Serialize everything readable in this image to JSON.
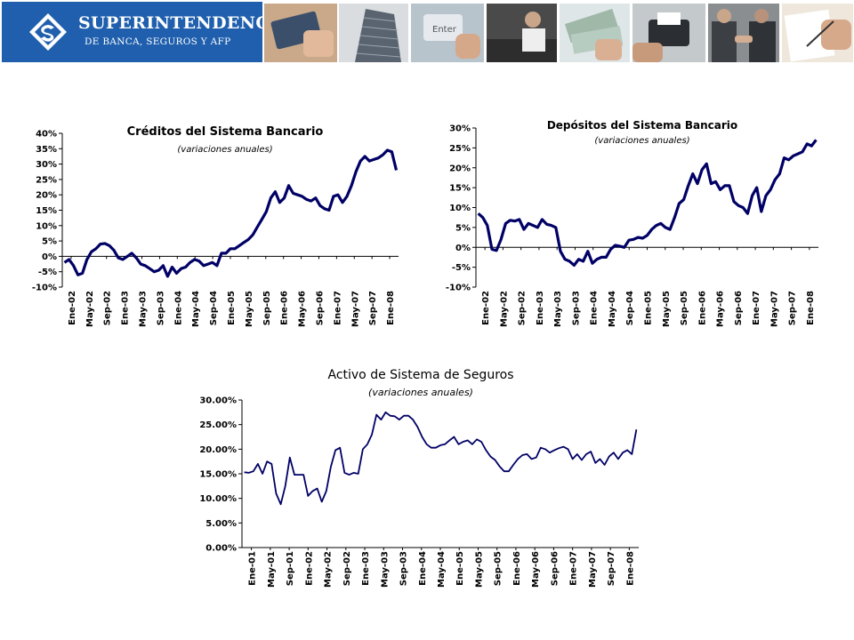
{
  "header": {
    "logo_line1": "SUPERINTENDENCIA",
    "logo_line2": "DE BANCA, SEGUROS Y AFP"
  },
  "chart_data": [
    {
      "type": "line",
      "title": "Créditos del Sistema Bancario",
      "subtitle": "(variaciones anuales)",
      "ylim": [
        -10,
        40
      ],
      "yticks": [
        "-10%",
        "-5%",
        "0%",
        "5%",
        "10%",
        "15%",
        "20%",
        "25%",
        "30%",
        "35%",
        "40%"
      ],
      "xticks": [
        "Ene-02",
        "May-02",
        "Sep-02",
        "Ene-03",
        "May-03",
        "Sep-03",
        "Ene-04",
        "May-04",
        "Sep-04",
        "Ene-05",
        "May-05",
        "Sep-05",
        "Ene-06",
        "May-06",
        "Sep-06",
        "Ene-07",
        "May-07",
        "Sep-07",
        "Ene-08"
      ],
      "color": "#000066",
      "series": [
        {
          "values": [
            -2.0,
            -1.0,
            -3.0,
            -6.0,
            -5.5,
            -1.0,
            1.5,
            2.5,
            4.0,
            4.2,
            3.5,
            2.0,
            -0.5,
            -1.0,
            0.0,
            1.0,
            -0.5,
            -2.5,
            -3.0,
            -4.0,
            -5.0,
            -4.5,
            -3.0,
            -6.5,
            -3.5,
            -5.5,
            -4.0,
            -3.5,
            -2.0,
            -1.0,
            -1.5,
            -3.0,
            -2.5,
            -2.0,
            -3.0,
            1.0,
            1.0,
            2.5,
            2.5,
            3.5,
            4.5,
            5.5,
            7.0,
            9.5,
            12.0,
            14.5,
            19.0,
            21.0,
            17.5,
            19.0,
            23.0,
            20.5,
            20.0,
            19.5,
            18.5,
            18.0,
            19.0,
            16.5,
            15.5,
            15.0,
            19.5,
            20.0,
            17.5,
            19.5,
            23.0,
            27.5,
            31.0,
            32.5,
            31.0,
            31.5,
            32.0,
            33.0,
            34.5,
            34.0,
            28.0
          ]
        }
      ]
    },
    {
      "type": "line",
      "title": "Depósitos del Sistema Bancario",
      "subtitle": "(variaciones anuales)",
      "ylim": [
        -10,
        30
      ],
      "yticks": [
        "-10%",
        "-5%",
        "0%",
        "5%",
        "10%",
        "15%",
        "20%",
        "25%",
        "30%"
      ],
      "xticks": [
        "Ene-02",
        "May-02",
        "Sep-02",
        "Ene-03",
        "May-03",
        "Sep-03",
        "Ene-04",
        "May-04",
        "Sep-04",
        "Ene-05",
        "May-05",
        "Sep-05",
        "Ene-06",
        "May-06",
        "Sep-06",
        "Ene-07",
        "May-07",
        "Sep-07",
        "Ene-08"
      ],
      "color": "#000066",
      "series": [
        {
          "values": [
            8.5,
            7.5,
            5.5,
            -0.5,
            -0.8,
            2.0,
            6.0,
            6.8,
            6.6,
            7.0,
            4.5,
            6.0,
            5.5,
            5.0,
            7.0,
            5.8,
            5.5,
            5.0,
            -1.0,
            -3.0,
            -3.5,
            -4.5,
            -3.0,
            -3.5,
            -1.0,
            -4.0,
            -3.0,
            -2.5,
            -2.5,
            -0.5,
            0.5,
            0.3,
            0.0,
            1.8,
            2.0,
            2.5,
            2.3,
            3.0,
            4.5,
            5.5,
            6.0,
            5.0,
            4.5,
            7.5,
            11.0,
            12.0,
            15.5,
            18.5,
            16.0,
            19.5,
            21.0,
            16.0,
            16.5,
            14.5,
            15.5,
            15.5,
            11.5,
            10.5,
            10.0,
            8.5,
            13.0,
            15.0,
            9.0,
            13.0,
            14.5,
            17.0,
            18.5,
            22.5,
            22.0,
            23.0,
            23.5,
            24.0,
            26.0,
            25.5,
            27.0
          ]
        }
      ]
    },
    {
      "type": "line",
      "title": "Activo de Sistema de Seguros",
      "subtitle": "(variaciones anuales)",
      "ylim": [
        0,
        30
      ],
      "yticks": [
        "0.00%",
        "5.00%",
        "10.00%",
        "15.00%",
        "20.00%",
        "25.00%",
        "30.00%"
      ],
      "xticks": [
        "Ene-01",
        "May-01",
        "Sep-01",
        "Ene-02",
        "May-02",
        "Sep-02",
        "Ene-03",
        "May-03",
        "Sep-03",
        "Ene-04",
        "May-04",
        "Ene-05",
        "May-05",
        "Sep-05",
        "Ene-06",
        "May-06",
        "Sep-06",
        "Ene-07",
        "May-07",
        "Sep-07",
        "Ene-08"
      ],
      "color": "#000066",
      "series": [
        {
          "values": [
            15.3,
            15.2,
            15.5,
            17.0,
            15.0,
            17.5,
            17.0,
            11.0,
            8.8,
            12.5,
            18.3,
            14.8,
            14.8,
            14.8,
            10.5,
            11.5,
            12.0,
            9.3,
            11.5,
            16.5,
            19.8,
            20.3,
            15.2,
            14.8,
            15.2,
            15.0,
            20.0,
            21.0,
            23.0,
            27.0,
            26.0,
            27.5,
            26.8,
            26.7,
            26.0,
            26.8,
            26.8,
            26.0,
            24.5,
            22.5,
            21.0,
            20.3,
            20.3,
            20.8,
            21.0,
            21.8,
            22.5,
            21.0,
            21.5,
            21.8,
            21.0,
            22.0,
            21.5,
            19.8,
            18.5,
            17.8,
            16.5,
            15.5,
            15.5,
            16.8,
            18.0,
            18.8,
            19.0,
            18.0,
            18.3,
            20.3,
            20.0,
            19.3,
            19.8,
            20.2,
            20.5,
            20.0,
            18.0,
            19.0,
            17.8,
            19.0,
            19.5,
            17.2,
            18.0,
            16.8,
            18.5,
            19.3,
            18.0,
            19.3,
            19.8,
            19.0,
            24.0
          ]
        }
      ]
    }
  ]
}
